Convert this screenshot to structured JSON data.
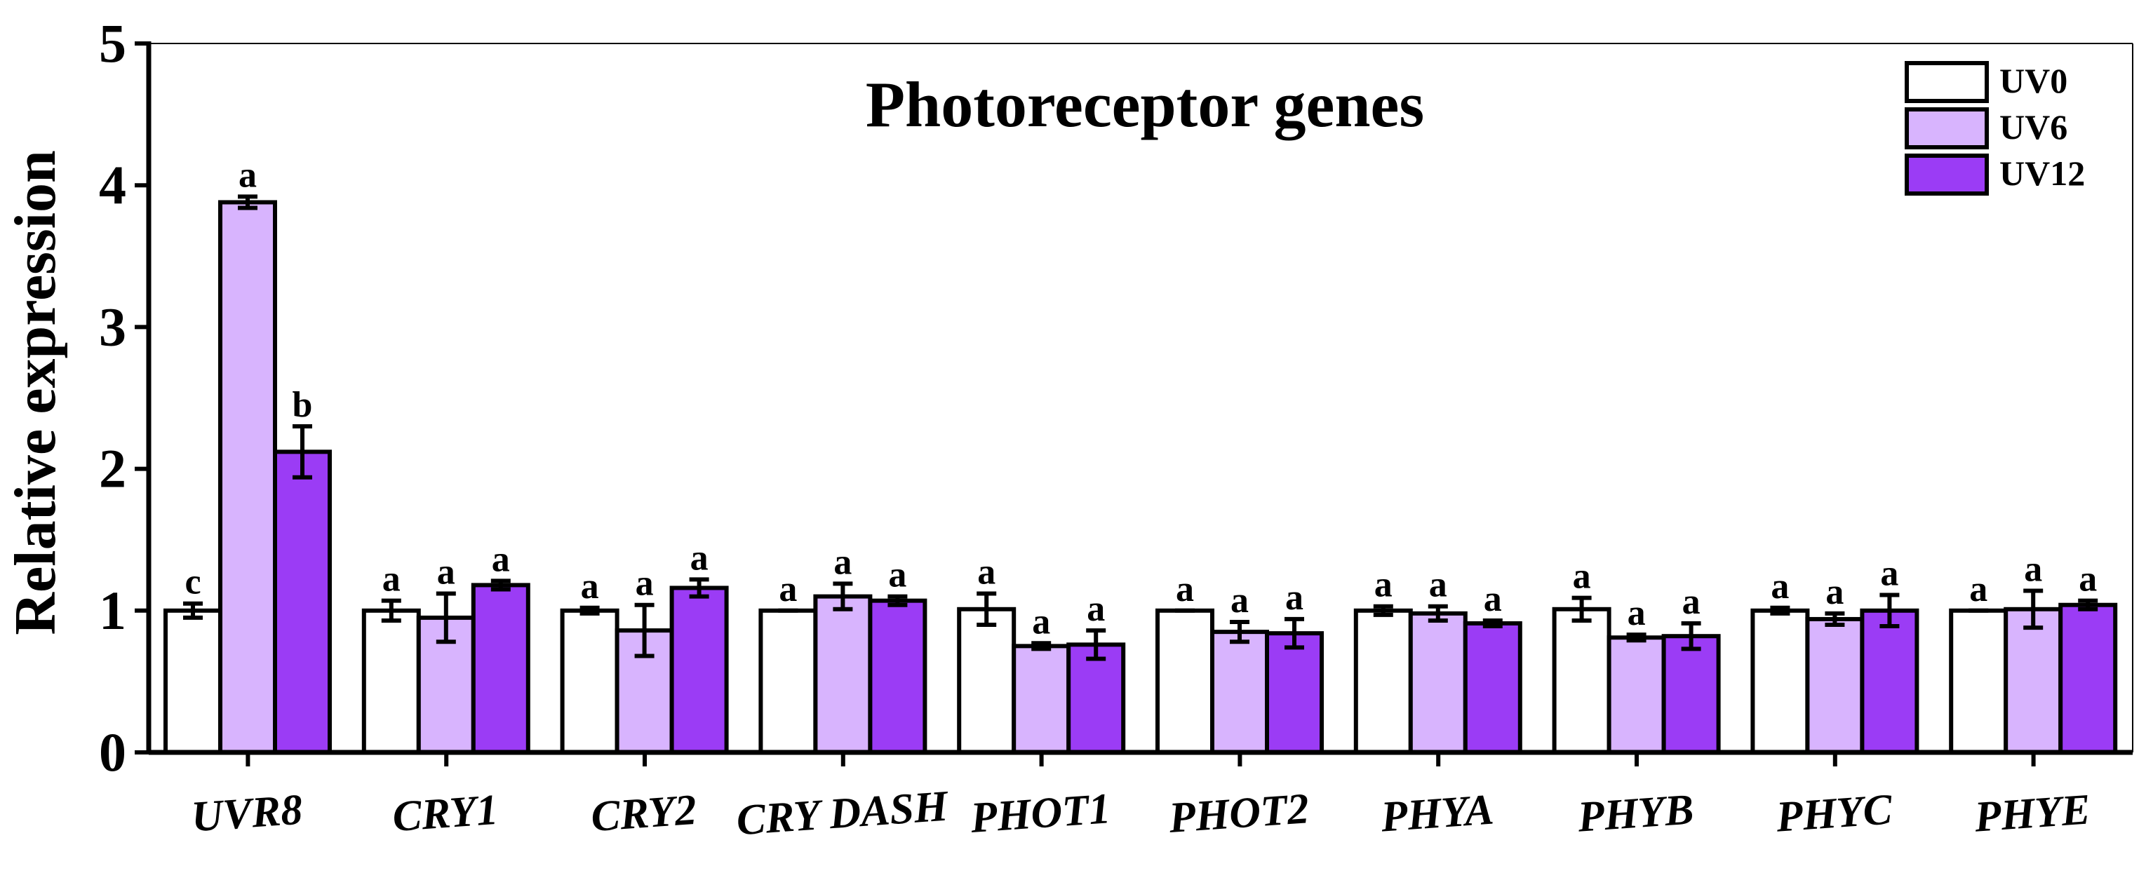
{
  "chart_data": {
    "type": "bar",
    "title": "Photoreceptor genes",
    "xlabel": "",
    "ylabel": "Relative expression",
    "ylim": [
      0,
      5
    ],
    "yticks": [
      "0",
      "1",
      "2",
      "3",
      "4",
      "5"
    ],
    "categories": [
      "UVR8",
      "CRY1",
      "CRY2",
      "CRY DASH",
      "PHOT1",
      "PHOT2",
      "PHYA",
      "PHYB",
      "PHYC",
      "PHYE"
    ],
    "legend_position": "top-right",
    "series": [
      {
        "name": "UV0",
        "color": "#ffffff",
        "values": [
          1.0,
          1.0,
          1.0,
          1.0,
          1.01,
          1.0,
          1.0,
          1.01,
          1.0,
          1.0
        ],
        "errors": [
          0.05,
          0.07,
          0.02,
          0.0,
          0.11,
          0.0,
          0.03,
          0.08,
          0.02,
          0.0
        ],
        "letters": [
          "c",
          "a",
          "a",
          "a",
          "a",
          "a",
          "a",
          "a",
          "a",
          "a"
        ]
      },
      {
        "name": "UV6",
        "color": "#d8b4fe",
        "values": [
          3.88,
          0.95,
          0.86,
          1.1,
          0.75,
          0.85,
          0.98,
          0.81,
          0.94,
          1.01
        ],
        "errors": [
          0.04,
          0.17,
          0.18,
          0.09,
          0.02,
          0.07,
          0.05,
          0.02,
          0.04,
          0.13
        ],
        "letters": [
          "a",
          "a",
          "a",
          "a",
          "a",
          "a",
          "a",
          "a",
          "a",
          "a"
        ]
      },
      {
        "name": "UV12",
        "color": "#9b3cf5",
        "values": [
          2.12,
          1.18,
          1.16,
          1.07,
          0.76,
          0.84,
          0.91,
          0.82,
          1.0,
          1.04
        ],
        "errors": [
          0.18,
          0.03,
          0.06,
          0.03,
          0.1,
          0.1,
          0.02,
          0.09,
          0.11,
          0.03
        ],
        "letters": [
          "b",
          "a",
          "a",
          "a",
          "a",
          "a",
          "a",
          "a",
          "a",
          "a"
        ]
      }
    ]
  }
}
